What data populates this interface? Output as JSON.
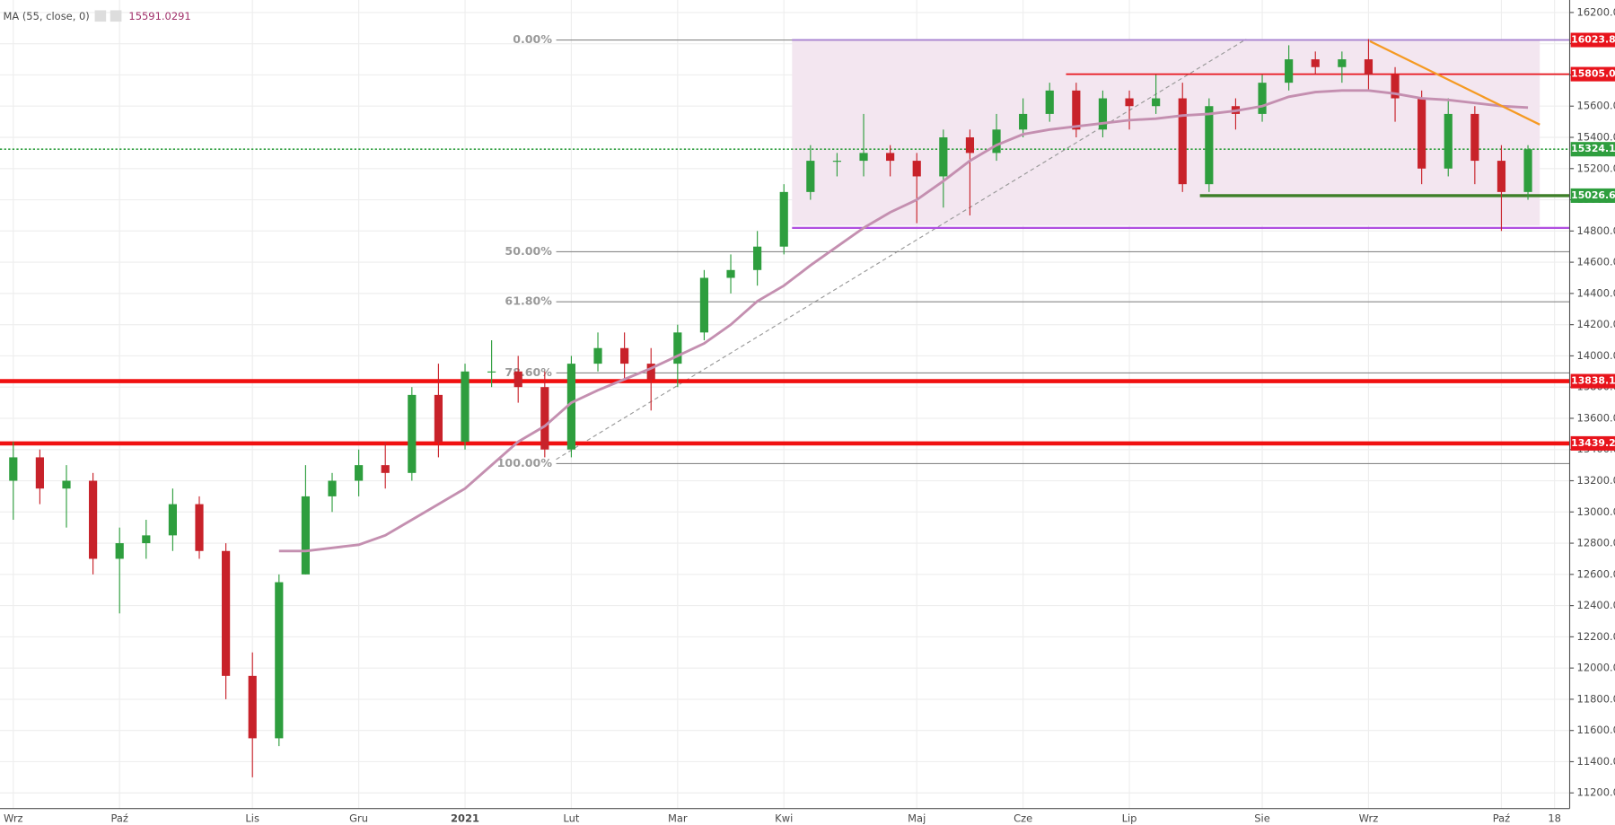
{
  "chart_data": {
    "type": "candlestick",
    "indicator": "MA (55, close, 0)",
    "categories": [
      "Wrz",
      null,
      null,
      null,
      "Paź",
      null,
      null,
      null,
      null,
      "Lis",
      null,
      null,
      null,
      "Gru",
      null,
      null,
      null,
      "2021",
      null,
      null,
      null,
      "Lut",
      null,
      null,
      null,
      "Mar",
      null,
      null,
      null,
      "Kwi",
      null,
      null,
      null,
      null,
      "Maj",
      null,
      null,
      null,
      "Cze",
      null,
      null,
      null,
      "Lip",
      null,
      null,
      null,
      null,
      "Sie",
      null,
      null,
      null,
      "Wrz",
      null,
      null,
      null,
      null,
      "Paź",
      null,
      "18"
    ],
    "open": [
      13200,
      13350,
      13150,
      13200,
      12700,
      12800,
      12850,
      13050,
      12750,
      11950,
      11550,
      12600,
      13100,
      13200,
      13300,
      13250,
      13750,
      13450,
      13900,
      13900,
      13800,
      13400,
      13950,
      14050,
      13950,
      13950,
      14150,
      14500,
      14550,
      14700,
      15050,
      15250,
      15250,
      15300,
      15250,
      15150,
      15400,
      15300,
      15450,
      15550,
      15700,
      15450,
      15650,
      15600,
      15650,
      15100,
      15600,
      15550,
      15750,
      15900,
      15850,
      15900,
      15800,
      15650,
      15200,
      15550,
      15250,
      15050,
      null
    ],
    "high": [
      13450,
      13400,
      13300,
      13250,
      12900,
      12950,
      13150,
      13100,
      12800,
      12100,
      12600,
      13300,
      13250,
      13400,
      13450,
      13800,
      13950,
      13950,
      14100,
      14000,
      13900,
      14000,
      14150,
      14150,
      14050,
      14200,
      14550,
      14650,
      14800,
      15100,
      15350,
      15300,
      15550,
      15350,
      15300,
      15450,
      15450,
      15550,
      15650,
      15750,
      15750,
      15700,
      15700,
      15800,
      15750,
      15650,
      15650,
      15800,
      15990,
      15950,
      15950,
      16030,
      15850,
      15700,
      15650,
      15600,
      15350,
      15350,
      null
    ],
    "low": [
      12950,
      13050,
      12900,
      12600,
      12350,
      12700,
      12750,
      12700,
      11800,
      11300,
      11500,
      12600,
      13000,
      13100,
      13150,
      13200,
      13350,
      13400,
      13800,
      13700,
      13350,
      13350,
      13900,
      13850,
      13650,
      13800,
      14100,
      14400,
      14450,
      14650,
      15000,
      15150,
      15150,
      15150,
      14850,
      14950,
      14900,
      15250,
      15400,
      15500,
      15400,
      15400,
      15450,
      15550,
      15050,
      15050,
      15450,
      15500,
      15700,
      15800,
      15750,
      15700,
      15500,
      15100,
      15150,
      15100,
      14800,
      15000,
      null
    ],
    "close": [
      13350,
      13150,
      13200,
      12700,
      12800,
      12850,
      13050,
      12750,
      11950,
      11550,
      12550,
      13100,
      13200,
      13300,
      13250,
      13750,
      13450,
      13900,
      13900,
      13800,
      13400,
      13950,
      14050,
      13950,
      13850,
      14150,
      14500,
      14550,
      14700,
      15050,
      15250,
      15250,
      15300,
      15250,
      15150,
      15400,
      15300,
      15450,
      15550,
      15700,
      15450,
      15650,
      15600,
      15650,
      15100,
      15600,
      15550,
      15750,
      15900,
      15850,
      15900,
      15800,
      15650,
      15200,
      15550,
      15250,
      15050,
      15324.1,
      null
    ],
    "ma": [
      null,
      null,
      null,
      null,
      null,
      null,
      null,
      null,
      null,
      null,
      12750,
      12750,
      12770,
      12790,
      12850,
      12950,
      13050,
      13150,
      13300,
      13450,
      13550,
      13700,
      13780,
      13850,
      13920,
      14000,
      14080,
      14200,
      14350,
      14450,
      14580,
      14700,
      14820,
      14920,
      15000,
      15120,
      15250,
      15350,
      15420,
      15450,
      15470,
      15490,
      15510,
      15520,
      15540,
      15550,
      15570,
      15600,
      15660,
      15690,
      15700,
      15700,
      15680,
      15650,
      15640,
      15620,
      15600,
      15591.0291,
      null
    ],
    "up_color": "#2e9e3e",
    "down_color": "#c8222a",
    "ma_color": "#c48fb0",
    "ylim": [
      11100,
      16280
    ],
    "yticks": [
      {
        "value": 11200,
        "label": "11200.00"
      },
      {
        "value": 11400,
        "label": "11400.00"
      },
      {
        "value": 11600,
        "label": "11600.00"
      },
      {
        "value": 11800,
        "label": "11800.00"
      },
      {
        "value": 12000,
        "label": "12000.00"
      },
      {
        "value": 12200,
        "label": "12200.00"
      },
      {
        "value": 12400,
        "label": "12400.00"
      },
      {
        "value": 12600,
        "label": "12600.00"
      },
      {
        "value": 12800,
        "label": "12800.00"
      },
      {
        "value": 13000,
        "label": "13000.00"
      },
      {
        "value": 13200,
        "label": "13200.00"
      },
      {
        "value": 13400,
        "label": "13400.00"
      },
      {
        "value": 13600,
        "label": "13600.00"
      },
      {
        "value": 13800,
        "label": "13800.00"
      },
      {
        "value": 14000,
        "label": "14000.00"
      },
      {
        "value": 14200,
        "label": "14200.00"
      },
      {
        "value": 14400,
        "label": "14400.00"
      },
      {
        "value": 14600,
        "label": "14600.00"
      },
      {
        "value": 14800,
        "label": "14800.00"
      },
      {
        "value": 15000,
        "label": "15000.00"
      },
      {
        "value": 15200,
        "label": "15200.00"
      },
      {
        "value": 15400,
        "label": "15400.00"
      },
      {
        "value": 15600,
        "label": "15600.00"
      },
      {
        "value": 15800,
        "label": "15800.00"
      },
      {
        "value": 16000,
        "label": "16000.00"
      },
      {
        "value": 16200,
        "label": "16200.00"
      }
    ],
    "grid": true,
    "fib_levels": [
      {
        "label": "0.00%",
        "value": 16023.8
      },
      {
        "label": "50.00%",
        "value": 14666.9
      },
      {
        "label": "61.80%",
        "value": 14346.7
      },
      {
        "label": "78.60%",
        "value": 13890.8
      },
      {
        "label": "100.00%",
        "value": 13310
      }
    ],
    "hlines": [
      {
        "value": 16023.8,
        "color": "#e8141c",
        "line_color": "#a57fd0"
      },
      {
        "value": 15805,
        "label": "15805.0",
        "color": "#e8141c",
        "line_color": "#e8141c"
      },
      {
        "value": 15324.1,
        "color": "#2e9e3e",
        "line_color": "#2e9e3e"
      },
      {
        "value": 15026.6,
        "color": "#2e9e3e",
        "line_color": "#3d7f28"
      },
      {
        "value": 13838.1,
        "color": "#e8141c",
        "line_color": "#f01010"
      },
      {
        "value": 13439.2,
        "color": "#e8141c",
        "line_color": "#f01010"
      },
      {
        "value": 14820,
        "line_color": "#b04fe0"
      }
    ]
  }
}
